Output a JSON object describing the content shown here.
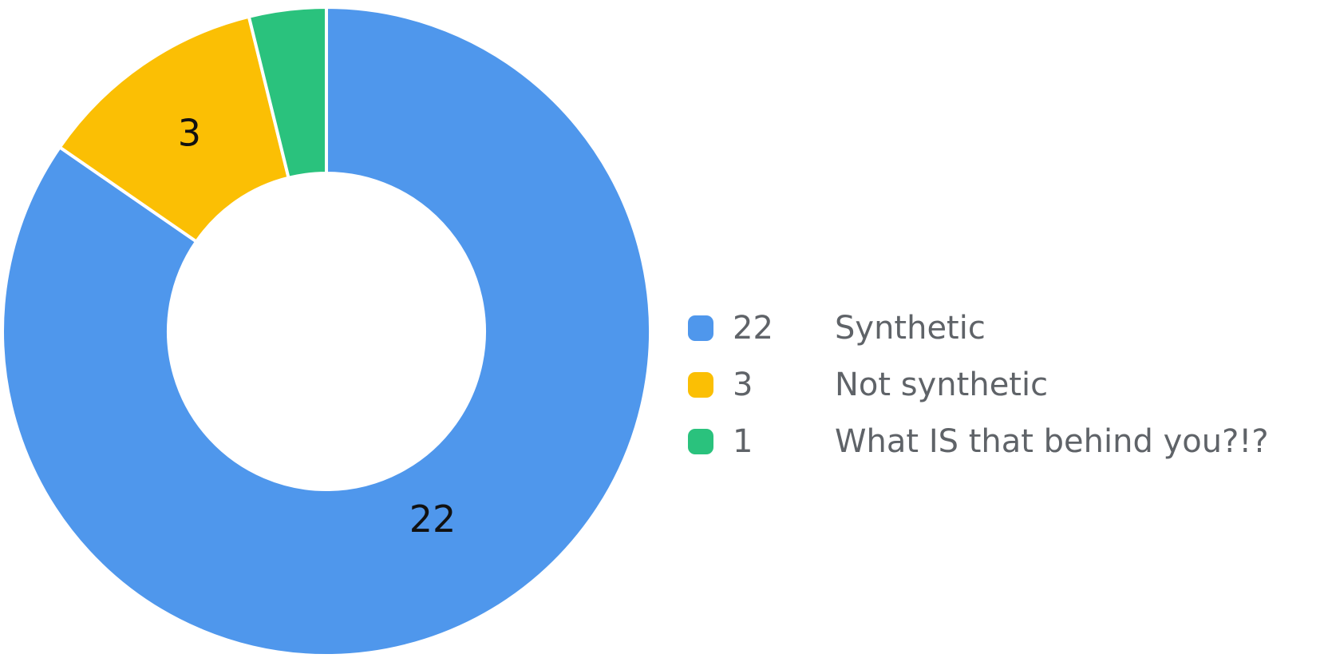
{
  "chart_data": {
    "type": "pie",
    "title": "",
    "donut": true,
    "legend_position": "right",
    "slices": [
      {
        "label": "Synthetic",
        "value": 22,
        "color": "#4f97ec",
        "data_label": "22"
      },
      {
        "label": "Not synthetic",
        "value": 3,
        "color": "#fbbf04",
        "data_label": "3"
      },
      {
        "label": "What IS that behind you?!?",
        "value": 1,
        "color": "#2ac27d",
        "data_label": ""
      }
    ]
  }
}
